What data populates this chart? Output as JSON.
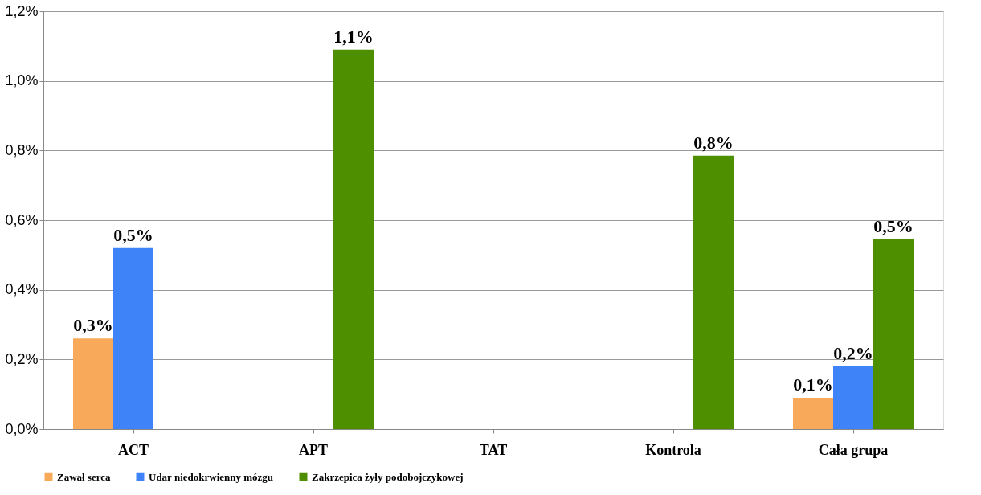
{
  "chart_data": {
    "type": "bar",
    "categories": [
      "ACT",
      "APT",
      "TAT",
      "Kontrola",
      "Cała grupa"
    ],
    "series": [
      {
        "name": "Zawał serca",
        "color": "#f9a95a",
        "values": [
          0.26,
          null,
          null,
          null,
          0.09
        ],
        "value_labels": [
          "0,3%",
          null,
          null,
          null,
          "0,1%"
        ]
      },
      {
        "name": "Udar niedokrwienny mózgu",
        "color": "#3f83f8",
        "values": [
          0.52,
          null,
          null,
          null,
          0.18
        ],
        "value_labels": [
          "0,5%",
          null,
          null,
          null,
          "0,2%"
        ]
      },
      {
        "name": "Zakrzepica żyły podobojczykowej",
        "color": "#4e8f00",
        "values": [
          null,
          1.09,
          null,
          0.785,
          0.545
        ],
        "value_labels": [
          null,
          "1,1%",
          null,
          "0,8%",
          "0,5%"
        ]
      }
    ],
    "ylim": [
      0,
      1.2
    ],
    "yticks": [
      {
        "value": 0,
        "label": "0,0%"
      },
      {
        "value": 0.2,
        "label": "0,2%"
      },
      {
        "value": 0.4,
        "label": "0,4%"
      },
      {
        "value": 0.6,
        "label": "0,6%"
      },
      {
        "value": 0.8,
        "label": "0,8%"
      },
      {
        "value": 1.0,
        "label": "1,0%"
      },
      {
        "value": 1.2,
        "label": "1,2%"
      }
    ],
    "grid": "y",
    "legend": "bottom"
  }
}
